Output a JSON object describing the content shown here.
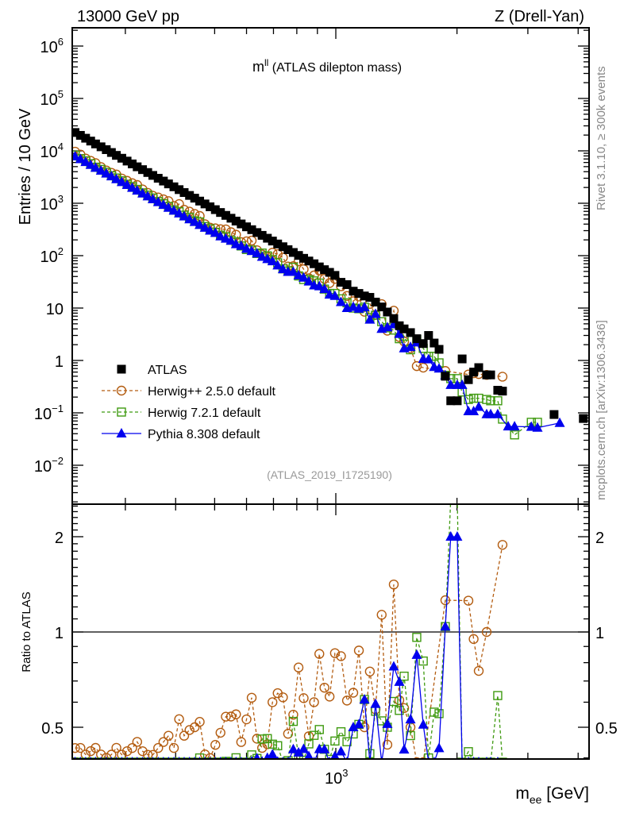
{
  "header": {
    "left": "13000 GeV pp",
    "right": "Z (Drell-Yan)",
    "plot_title_main": "m",
    "plot_title_sup": "ll",
    "plot_title_rest": " (ATLAS dilepton mass)",
    "side_text_top": "Rivet 3.1.10, ≥ 300k events",
    "side_text_bottom": "mcplots.cern.ch [arXiv:1306.3436]",
    "analysis_id": "(ATLAS_2019_I1725190)"
  },
  "colors": {
    "atlas": "#000000",
    "herwigpp": "#b35c10",
    "herwig7": "#3f9a10",
    "pythia": "#0000ee"
  },
  "chart_data": {
    "type": "scatter",
    "title": "m^ll (ATLAS dilepton mass)",
    "xlabel_main": "m",
    "xlabel_sub": "ee",
    "xlabel_unit": " [GeV]",
    "ylabel": "Entries / 10 GeV",
    "ratio_ylabel": "Ratio to ATLAS",
    "xscale": "log",
    "yscale": "log",
    "xlim": [
      221,
      4250
    ],
    "ylim": [
      0.0018,
      2200000
    ],
    "ratio_ylim": [
      0.4,
      2.5
    ],
    "legend_position": "center-left",
    "x_tick_labels": [
      {
        "value": 1000,
        "base": "10",
        "exp": "3"
      }
    ],
    "y_tick_labels": [
      {
        "value": 1000000,
        "base": "10",
        "exp": "6"
      },
      {
        "value": 100000,
        "base": "10",
        "exp": "5"
      },
      {
        "value": 10000,
        "base": "10",
        "exp": "4"
      },
      {
        "value": 1000,
        "base": "10",
        "exp": "3"
      },
      {
        "value": 100,
        "base": "10",
        "exp": "2"
      },
      {
        "value": 10,
        "base": "10",
        "exp": ""
      },
      {
        "value": 1,
        "base": "1",
        "exp": ""
      },
      {
        "value": 0.1,
        "base": "10",
        "exp": "−1"
      },
      {
        "value": 0.01,
        "base": "10",
        "exp": "−2"
      }
    ],
    "ratio_tick_labels": [
      {
        "value": 0.5,
        "label": "0.5"
      },
      {
        "value": 1,
        "label": "1"
      },
      {
        "value": 2,
        "label": "2"
      }
    ],
    "x": [
      225,
      232,
      239,
      246,
      253,
      261,
      269,
      277,
      285,
      294,
      303,
      312,
      321,
      331,
      341,
      351,
      362,
      373,
      384,
      396,
      408,
      420,
      433,
      446,
      459,
      473,
      487,
      502,
      517,
      533,
      549,
      565,
      582,
      600,
      618,
      637,
      656,
      676,
      696,
      717,
      739,
      761,
      784,
      808,
      832,
      857,
      883,
      910,
      937,
      965,
      995,
      1030,
      1066,
      1105,
      1141,
      1178,
      1215,
      1255,
      1300,
      1343,
      1393,
      1438,
      1478,
      1533,
      1589,
      1649,
      1700,
      1755,
      1805,
      1871,
      1930,
      2003,
      2060,
      2135,
      2200,
      2265,
      2370,
      2425,
      2525,
      2595,
      2680,
      2780,
      3060,
      3170,
      3485,
      3600,
      4120
    ],
    "series": [
      {
        "name": "ATLAS",
        "key": "atlas",
        "marker": "filled-square",
        "line": "none",
        "values": [
          22400,
          19760,
          17420,
          15370,
          13550,
          11950,
          10540,
          9300,
          8200,
          7230,
          6380,
          5630,
          4960,
          4380,
          3860,
          3400,
          3000,
          2650,
          2340,
          2060,
          1820,
          1600,
          1410,
          1250,
          1100,
          970,
          856,
          755,
          666,
          587,
          518,
          457,
          403,
          355,
          313,
          276,
          244,
          215,
          190,
          167,
          148,
          130,
          115,
          101,
          89,
          79,
          70,
          61,
          54,
          48,
          42,
          31,
          28,
          21,
          19,
          17,
          16,
          13,
          10.5,
          8.4,
          6.3,
          4.6,
          4.0,
          3.4,
          2.6,
          2.1,
          3.0,
          2.15,
          1.63,
          0.5,
          0.17,
          0.17,
          1.07,
          0.43,
          0.6,
          0.73,
          0.53,
          0.53,
          0.27,
          0.26,
          null,
          null,
          null,
          null,
          0.093,
          null,
          0.078
        ]
      },
      {
        "name": "Herwig++ 2.5.0 default",
        "key": "herwigpp",
        "marker": "open-circle",
        "line": "dashed",
        "values": [
          9630,
          8500,
          7140,
          6460,
          5830,
          4900,
          4220,
          3810,
          3530,
          2960,
          2680,
          2420,
          2230,
          1840,
          1580,
          1390,
          1290,
          1190,
          1100,
          886,
          965,
          752,
          691,
          625,
          572,
          398,
          342,
          332,
          320,
          317,
          280,
          251,
          181,
          188,
          194,
          127,
          105,
          95,
          114,
          107,
          92,
          62,
          63,
          78,
          55,
          37,
          42,
          52,
          36,
          30,
          36,
          26,
          17,
          13.5,
          16.6,
          8.5,
          12,
          7.4,
          11.9,
          3.7,
          8.9,
          2.8,
          2.3,
          1.7,
          0.78,
          0.73,
          null,
          null,
          null,
          0.63,
          null,
          null,
          null,
          0.54,
          0.57,
          0.55,
          0.53,
          null,
          null,
          0.49,
          null,
          null,
          null,
          null,
          null,
          null,
          null
        ]
      },
      {
        "name": "Herwig 7.2.1 default",
        "key": "herwig7",
        "marker": "open-square",
        "line": "dashed",
        "values": [
          8290,
          7110,
          6450,
          5690,
          4880,
          4420,
          3900,
          3350,
          3030,
          2680,
          2300,
          2080,
          1840,
          1580,
          1430,
          1260,
          1080,
          981,
          866,
          742,
          692,
          592,
          536,
          463,
          440,
          359,
          325,
          279,
          246,
          229,
          197,
          183,
          153,
          131,
          128,
          110,
          112,
          99,
          84,
          73,
          56,
          51,
          60,
          41,
          35,
          35,
          33,
          30,
          23,
          19,
          19,
          15,
          12.6,
          10,
          9.7,
          10.4,
          6.6,
          7.3,
          5.5,
          4.2,
          3.8,
          2.6,
          2.9,
          1.6,
          2.5,
          1.7,
          1.2,
          1.2,
          0.9,
          0.52,
          0.45,
          0.45,
          0.25,
          0.18,
          0.19,
          0.19,
          0.18,
          0.17,
          0.17,
          0.076,
          null,
          0.038,
          0.066,
          0.066,
          null,
          null,
          null
        ]
      },
      {
        "name": "Pythia 8.308 default",
        "key": "pythia",
        "marker": "filled-triangle",
        "line": "solid",
        "values": [
          7840,
          6920,
          6100,
          5380,
          4740,
          4180,
          3690,
          3260,
          2870,
          2530,
          2230,
          1970,
          1740,
          1530,
          1350,
          1190,
          1050,
          928,
          819,
          721,
          637,
          560,
          494,
          438,
          385,
          340,
          300,
          272,
          233,
          211,
          192,
          165,
          153,
          135,
          122,
          110,
          95,
          86,
          78,
          65,
          55,
          49,
          49,
          42,
          38,
          32,
          27,
          26,
          23,
          18,
          17,
          13,
          10,
          10.5,
          9.7,
          10.4,
          6,
          7.7,
          4,
          4.3,
          4.9,
          3.2,
          1.7,
          1.8,
          2.2,
          1.07,
          1.05,
          0.75,
          0.7,
          0.52,
          0.34,
          0.34,
          0.34,
          0.107,
          0.107,
          0.13,
          0.094,
          0.094,
          0.094,
          null,
          0.055,
          0.055,
          0.054,
          0.052,
          null,
          0.064,
          null
        ]
      }
    ]
  }
}
